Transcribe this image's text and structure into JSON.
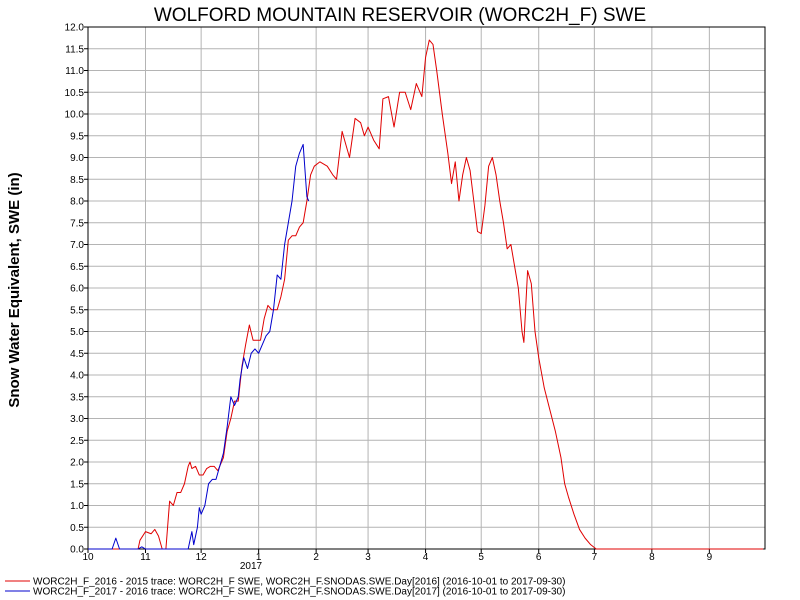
{
  "chart_data": {
    "type": "line",
    "title": "WOLFORD MOUNTAIN RESERVOIR (WORC2H_F) SWE",
    "ylabel": "Snow Water Equivalent, SWE (in)",
    "xlabel": "",
    "ylim": [
      0,
      12
    ],
    "xlim": [
      "2016-10-01",
      "2017-09-30"
    ],
    "grid": true,
    "legend_position": "bottom-left",
    "y_ticks": [
      "0.0",
      "0.5",
      "1.0",
      "1.5",
      "2.0",
      "2.5",
      "3.0",
      "3.5",
      "4.0",
      "4.5",
      "5.0",
      "5.5",
      "6.0",
      "6.5",
      "7.0",
      "7.5",
      "8.0",
      "8.5",
      "9.0",
      "9.5",
      "10.0",
      "10.5",
      "11.0",
      "11.5",
      "12.0"
    ],
    "x_ticks": [
      "10",
      "11",
      "12",
      "1",
      "2",
      "3",
      "4",
      "5",
      "6",
      "7",
      "8",
      "9"
    ],
    "x_year_label": "2017",
    "series": [
      {
        "name": "WORC2H_F_2016 - 2015 trace: WORC2H_F SWE, WORC2H_F.SNODAS.SWE.Day[2016] (2016-10-01 to 2017-09-30)",
        "color": "#e00000",
        "points": [
          [
            "2016-10-01",
            0.0
          ],
          [
            "2016-10-28",
            0.0
          ],
          [
            "2016-10-29",
            0.2
          ],
          [
            "2016-11-01",
            0.4
          ],
          [
            "2016-11-04",
            0.35
          ],
          [
            "2016-11-06",
            0.45
          ],
          [
            "2016-11-08",
            0.3
          ],
          [
            "2016-11-10",
            0.0
          ],
          [
            "2016-11-12",
            0.0
          ],
          [
            "2016-11-14",
            1.1
          ],
          [
            "2016-11-16",
            1.0
          ],
          [
            "2016-11-18",
            1.3
          ],
          [
            "2016-11-20",
            1.3
          ],
          [
            "2016-11-22",
            1.5
          ],
          [
            "2016-11-24",
            1.9
          ],
          [
            "2016-11-25",
            2.0
          ],
          [
            "2016-11-26",
            1.85
          ],
          [
            "2016-11-28",
            1.9
          ],
          [
            "2016-11-30",
            1.7
          ],
          [
            "2016-12-02",
            1.7
          ],
          [
            "2016-12-04",
            1.85
          ],
          [
            "2016-12-06",
            1.9
          ],
          [
            "2016-12-08",
            1.9
          ],
          [
            "2016-12-10",
            1.8
          ],
          [
            "2016-12-13",
            2.1
          ],
          [
            "2016-12-15",
            2.7
          ],
          [
            "2016-12-17",
            3.0
          ],
          [
            "2016-12-19",
            3.4
          ],
          [
            "2016-12-21",
            3.4
          ],
          [
            "2016-12-23",
            4.2
          ],
          [
            "2016-12-25",
            4.7
          ],
          [
            "2016-12-27",
            5.15
          ],
          [
            "2016-12-29",
            4.8
          ],
          [
            "2017-01-02",
            4.8
          ],
          [
            "2017-01-04",
            5.3
          ],
          [
            "2017-01-06",
            5.6
          ],
          [
            "2017-01-08",
            5.5
          ],
          [
            "2017-01-11",
            5.5
          ],
          [
            "2017-01-13",
            5.8
          ],
          [
            "2017-01-15",
            6.2
          ],
          [
            "2017-01-17",
            7.1
          ],
          [
            "2017-01-19",
            7.2
          ],
          [
            "2017-01-21",
            7.2
          ],
          [
            "2017-01-23",
            7.4
          ],
          [
            "2017-01-25",
            7.5
          ],
          [
            "2017-01-27",
            8.0
          ],
          [
            "2017-01-29",
            8.6
          ],
          [
            "2017-01-31",
            8.8
          ],
          [
            "2017-02-03",
            8.9
          ],
          [
            "2017-02-07",
            8.8
          ],
          [
            "2017-02-10",
            8.6
          ],
          [
            "2017-02-12",
            8.5
          ],
          [
            "2017-02-15",
            9.6
          ],
          [
            "2017-02-17",
            9.3
          ],
          [
            "2017-02-19",
            9.0
          ],
          [
            "2017-02-22",
            9.9
          ],
          [
            "2017-02-25",
            9.8
          ],
          [
            "2017-02-27",
            9.5
          ],
          [
            "2017-03-01",
            9.7
          ],
          [
            "2017-03-04",
            9.4
          ],
          [
            "2017-03-07",
            9.2
          ],
          [
            "2017-03-09",
            10.35
          ],
          [
            "2017-03-12",
            10.4
          ],
          [
            "2017-03-15",
            9.7
          ],
          [
            "2017-03-18",
            10.5
          ],
          [
            "2017-03-21",
            10.5
          ],
          [
            "2017-03-24",
            10.1
          ],
          [
            "2017-03-27",
            10.7
          ],
          [
            "2017-03-30",
            10.4
          ],
          [
            "2017-04-01",
            11.3
          ],
          [
            "2017-04-03",
            11.7
          ],
          [
            "2017-04-05",
            11.6
          ],
          [
            "2017-04-07",
            11.0
          ],
          [
            "2017-04-10",
            10.0
          ],
          [
            "2017-04-13",
            9.1
          ],
          [
            "2017-04-15",
            8.4
          ],
          [
            "2017-04-17",
            8.9
          ],
          [
            "2017-04-19",
            8.0
          ],
          [
            "2017-04-21",
            8.6
          ],
          [
            "2017-04-23",
            9.0
          ],
          [
            "2017-04-25",
            8.7
          ],
          [
            "2017-04-27",
            8.0
          ],
          [
            "2017-04-29",
            7.3
          ],
          [
            "2017-05-01",
            7.25
          ],
          [
            "2017-05-03",
            7.9
          ],
          [
            "2017-05-05",
            8.8
          ],
          [
            "2017-05-07",
            9.0
          ],
          [
            "2017-05-09",
            8.6
          ],
          [
            "2017-05-11",
            8.0
          ],
          [
            "2017-05-13",
            7.5
          ],
          [
            "2017-05-15",
            6.9
          ],
          [
            "2017-05-17",
            7.0
          ],
          [
            "2017-05-19",
            6.5
          ],
          [
            "2017-05-21",
            6.0
          ],
          [
            "2017-05-23",
            5.0
          ],
          [
            "2017-05-24",
            4.75
          ],
          [
            "2017-05-26",
            6.4
          ],
          [
            "2017-05-28",
            6.1
          ],
          [
            "2017-05-30",
            5.0
          ],
          [
            "2017-06-01",
            4.4
          ],
          [
            "2017-06-04",
            3.7
          ],
          [
            "2017-06-07",
            3.2
          ],
          [
            "2017-06-10",
            2.7
          ],
          [
            "2017-06-13",
            2.1
          ],
          [
            "2017-06-15",
            1.5
          ],
          [
            "2017-06-17",
            1.2
          ],
          [
            "2017-06-20",
            0.8
          ],
          [
            "2017-06-23",
            0.45
          ],
          [
            "2017-06-26",
            0.25
          ],
          [
            "2017-06-29",
            0.1
          ],
          [
            "2017-07-02",
            0.0
          ],
          [
            "2017-09-30",
            0.0
          ]
        ]
      },
      {
        "name": "WORC2H_F_2017 - 2016 trace: WORC2H_F SWE, WORC2H_F.SNODAS.SWE.Day[2017] (2016-10-01 to 2017-09-30)",
        "color": "#0000cc",
        "points": [
          [
            "2016-10-01",
            0.0
          ],
          [
            "2016-10-14",
            0.0
          ],
          [
            "2016-10-16",
            0.25
          ],
          [
            "2016-10-18",
            0.0
          ],
          [
            "2016-10-28",
            0.0
          ],
          [
            "2016-10-30",
            0.05
          ],
          [
            "2016-11-01",
            0.0
          ],
          [
            "2016-11-24",
            0.0
          ],
          [
            "2016-11-26",
            0.4
          ],
          [
            "2016-11-27",
            0.1
          ],
          [
            "2016-11-29",
            0.5
          ],
          [
            "2016-11-30",
            0.95
          ],
          [
            "2016-12-01",
            0.8
          ],
          [
            "2016-12-03",
            1.0
          ],
          [
            "2016-12-05",
            1.5
          ],
          [
            "2016-12-07",
            1.6
          ],
          [
            "2016-12-09",
            1.6
          ],
          [
            "2016-12-11",
            1.9
          ],
          [
            "2016-12-13",
            2.2
          ],
          [
            "2016-12-15",
            2.8
          ],
          [
            "2016-12-17",
            3.5
          ],
          [
            "2016-12-19",
            3.3
          ],
          [
            "2016-12-21",
            3.5
          ],
          [
            "2016-12-22",
            3.9
          ],
          [
            "2016-12-24",
            4.4
          ],
          [
            "2016-12-26",
            4.15
          ],
          [
            "2016-12-28",
            4.5
          ],
          [
            "2016-12-30",
            4.6
          ],
          [
            "2017-01-01",
            4.5
          ],
          [
            "2017-01-03",
            4.7
          ],
          [
            "2017-01-05",
            4.9
          ],
          [
            "2017-01-07",
            5.0
          ],
          [
            "2017-01-09",
            5.5
          ],
          [
            "2017-01-11",
            6.3
          ],
          [
            "2017-01-13",
            6.2
          ],
          [
            "2017-01-15",
            7.0
          ],
          [
            "2017-01-17",
            7.5
          ],
          [
            "2017-01-19",
            8.0
          ],
          [
            "2017-01-21",
            8.8
          ],
          [
            "2017-01-23",
            9.1
          ],
          [
            "2017-01-25",
            9.3
          ],
          [
            "2017-01-27",
            8.1
          ],
          [
            "2017-01-28",
            8.0
          ]
        ]
      }
    ]
  }
}
